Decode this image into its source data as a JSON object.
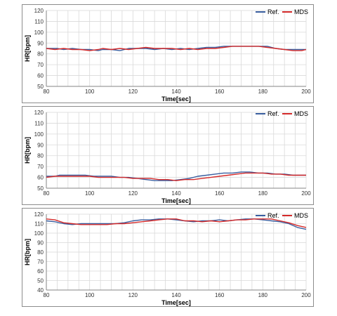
{
  "chart_data": [
    {
      "type": "line",
      "xlabel": "Time[sec]",
      "ylabel": "HR[bpm]",
      "xlim": [
        80,
        200
      ],
      "ylim": [
        50,
        120
      ],
      "xticks": [
        80,
        100,
        120,
        140,
        160,
        180,
        200
      ],
      "yticks": [
        50,
        60,
        70,
        80,
        90,
        100,
        110,
        120
      ],
      "grid": true,
      "legend": "top-right",
      "series": [
        {
          "name": "Ref.",
          "color": "#3a5fa0",
          "x": [
            80,
            85,
            88,
            92,
            96,
            100,
            104,
            106,
            110,
            114,
            118,
            122,
            126,
            130,
            134,
            138,
            142,
            146,
            150,
            154,
            158,
            162,
            166,
            170,
            174,
            178,
            182,
            186,
            190,
            194,
            198,
            200
          ],
          "y": [
            85,
            85,
            84,
            85,
            84,
            84,
            83,
            84,
            84,
            83,
            85,
            85,
            85,
            84,
            85,
            84,
            85,
            84,
            85,
            86,
            86,
            87,
            87,
            87,
            87,
            87,
            87,
            85,
            84,
            84,
            84,
            84
          ]
        },
        {
          "name": "MDS",
          "color": "#d42a2a",
          "x": [
            80,
            84,
            88,
            92,
            96,
            100,
            104,
            106,
            110,
            114,
            118,
            122,
            126,
            130,
            134,
            138,
            142,
            146,
            150,
            154,
            158,
            162,
            166,
            170,
            174,
            178,
            182,
            186,
            190,
            194,
            198,
            200
          ],
          "y": [
            85,
            84,
            85,
            84,
            84,
            83,
            84,
            85,
            84,
            85,
            84,
            85,
            86,
            85,
            85,
            85,
            84,
            85,
            84,
            85,
            85,
            86,
            87,
            87,
            87,
            87,
            86,
            85,
            84,
            83,
            83,
            84
          ]
        }
      ]
    },
    {
      "type": "line",
      "xlabel": "Time[sec]",
      "ylabel": "HR[bpm]",
      "xlim": [
        80,
        200
      ],
      "ylim": [
        50,
        120
      ],
      "xticks": [
        80,
        100,
        120,
        140,
        160,
        180,
        200
      ],
      "yticks": [
        50,
        60,
        70,
        80,
        90,
        100,
        110,
        120
      ],
      "grid": true,
      "legend": "top-right",
      "series": [
        {
          "name": "Ref.",
          "color": "#3a5fa0",
          "x": [
            80,
            84,
            86,
            90,
            94,
            98,
            102,
            106,
            110,
            114,
            118,
            122,
            126,
            130,
            134,
            138,
            142,
            146,
            150,
            154,
            158,
            162,
            166,
            170,
            174,
            178,
            182,
            186,
            190,
            194,
            198,
            200
          ],
          "y": [
            61,
            61,
            62,
            62,
            62,
            62,
            61,
            61,
            61,
            60,
            60,
            59,
            58,
            57,
            57,
            57,
            58,
            59,
            61,
            62,
            63,
            64,
            64,
            65,
            65,
            64,
            64,
            63,
            63,
            62,
            62,
            62
          ]
        },
        {
          "name": "MDS",
          "color": "#d42a2a",
          "x": [
            80,
            84,
            88,
            92,
            96,
            100,
            104,
            108,
            112,
            116,
            120,
            124,
            128,
            132,
            136,
            140,
            144,
            148,
            152,
            156,
            160,
            164,
            168,
            172,
            176,
            180,
            184,
            188,
            192,
            196,
            200
          ],
          "y": [
            60,
            61,
            61,
            61,
            61,
            61,
            60,
            60,
            60,
            60,
            59,
            59,
            59,
            58,
            58,
            57,
            58,
            58,
            59,
            60,
            61,
            62,
            63,
            64,
            64,
            64,
            63,
            63,
            62,
            62,
            62
          ]
        }
      ]
    },
    {
      "type": "line",
      "xlabel": "Time[sec]",
      "ylabel": "HR[bpm]",
      "xlim": [
        80,
        200
      ],
      "ylim": [
        40,
        120
      ],
      "xticks": [
        80,
        100,
        120,
        140,
        160,
        180,
        200
      ],
      "yticks": [
        40,
        50,
        60,
        70,
        80,
        90,
        100,
        110,
        120
      ],
      "grid": true,
      "legend": "top-right",
      "series": [
        {
          "name": "Ref.",
          "color": "#3a5fa0",
          "x": [
            80,
            84,
            88,
            92,
            96,
            100,
            104,
            108,
            112,
            116,
            120,
            124,
            128,
            132,
            136,
            140,
            144,
            148,
            152,
            156,
            160,
            164,
            168,
            172,
            176,
            180,
            184,
            188,
            192,
            196,
            200
          ],
          "y": [
            113,
            112,
            110,
            109,
            110,
            110,
            110,
            110,
            110,
            111,
            113,
            114,
            114,
            115,
            115,
            114,
            113,
            112,
            113,
            113,
            114,
            113,
            114,
            115,
            115,
            114,
            113,
            112,
            110,
            106,
            104
          ]
        },
        {
          "name": "MDS",
          "color": "#d42a2a",
          "x": [
            80,
            84,
            88,
            92,
            96,
            100,
            104,
            108,
            112,
            116,
            120,
            124,
            128,
            132,
            136,
            140,
            144,
            148,
            152,
            156,
            160,
            164,
            168,
            172,
            176,
            180,
            184,
            188,
            192,
            196,
            200
          ],
          "y": [
            115,
            114,
            111,
            110,
            109,
            109,
            109,
            109,
            110,
            110,
            111,
            112,
            113,
            114,
            115,
            115,
            113,
            113,
            112,
            113,
            112,
            113,
            114,
            114,
            115,
            115,
            115,
            113,
            111,
            108,
            106
          ]
        }
      ]
    }
  ]
}
